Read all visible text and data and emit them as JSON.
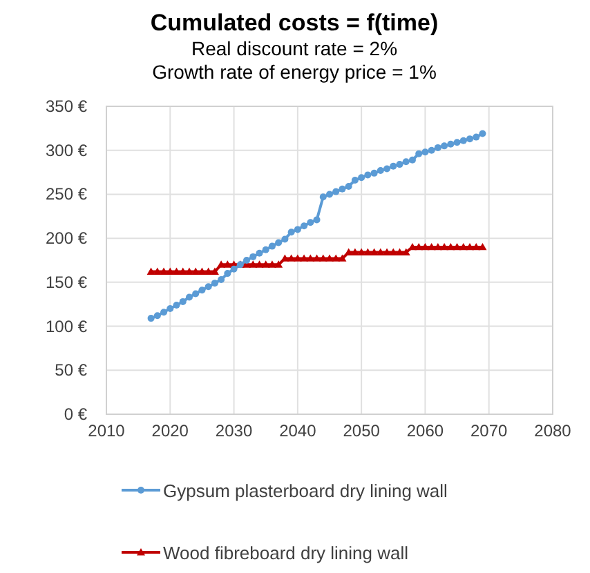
{
  "chart_data": {
    "type": "line",
    "title": "Cumulated costs = f(time)",
    "subtitle": "Real discount rate = 2%\nGrowth rate of energy price = 1%",
    "xlim": [
      2010,
      2080
    ],
    "xticks": [
      2010,
      2020,
      2030,
      2040,
      2050,
      2060,
      2070,
      2080
    ],
    "ylim": [
      0,
      350
    ],
    "yticks": [
      {
        "value": 0,
        "label": "0 €"
      },
      {
        "value": 50,
        "label": "50 €"
      },
      {
        "value": 100,
        "label": "100 €"
      },
      {
        "value": 150,
        "label": "150 €"
      },
      {
        "value": 200,
        "label": "200 €"
      },
      {
        "value": 250,
        "label": "250 €"
      },
      {
        "value": 300,
        "label": "300 €"
      },
      {
        "value": 350,
        "label": "350 €"
      }
    ],
    "grid": true,
    "legend": "bottom",
    "x": [
      2017,
      2018,
      2019,
      2020,
      2021,
      2022,
      2023,
      2024,
      2025,
      2026,
      2027,
      2028,
      2029,
      2030,
      2031,
      2032,
      2033,
      2034,
      2035,
      2036,
      2037,
      2038,
      2039,
      2040,
      2041,
      2042,
      2043,
      2044,
      2045,
      2046,
      2047,
      2048,
      2049,
      2050,
      2051,
      2052,
      2053,
      2054,
      2055,
      2056,
      2057,
      2058,
      2059,
      2060,
      2061,
      2062,
      2063,
      2064,
      2065,
      2066,
      2067,
      2068,
      2069
    ],
    "series": [
      {
        "name": "Gypsum plasterboard dry lining wall",
        "color": "#5b9bd5",
        "marker": "circle",
        "values": [
          109,
          112,
          116,
          120,
          124,
          128,
          133,
          137,
          141,
          145,
          149,
          153,
          160,
          165,
          170,
          175,
          179,
          183,
          187,
          191,
          195,
          199,
          207,
          210,
          214,
          218,
          221,
          247,
          250,
          253,
          256,
          259,
          266,
          269,
          272,
          274,
          277,
          279,
          282,
          284,
          287,
          289,
          296,
          298,
          300,
          303,
          305,
          307,
          309,
          311,
          313,
          315,
          319
        ]
      },
      {
        "name": "Wood fibreboard dry lining wall",
        "color": "#c00000",
        "marker": "triangle",
        "values": [
          162,
          162,
          162,
          162,
          162,
          162,
          162,
          162,
          162,
          162,
          162,
          170,
          170,
          170,
          170,
          170,
          170,
          170,
          170,
          170,
          170,
          177,
          177,
          177,
          177,
          177,
          177,
          177,
          177,
          177,
          177,
          184,
          184,
          184,
          184,
          184,
          184,
          184,
          184,
          184,
          184,
          190,
          190,
          190,
          190,
          190,
          190,
          190,
          190,
          190,
          190,
          190,
          190
        ]
      }
    ]
  }
}
